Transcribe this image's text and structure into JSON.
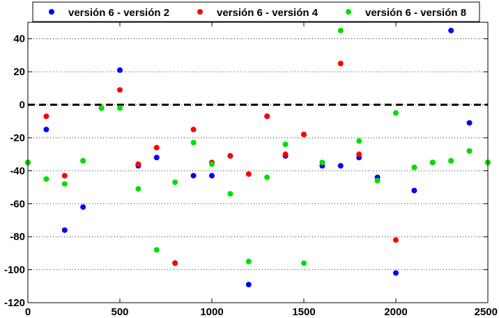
{
  "chart_data": {
    "type": "scatter",
    "title": "",
    "xlabel": "",
    "ylabel": "",
    "xlim": [
      0,
      2500
    ],
    "ylim": [
      -120,
      50
    ],
    "xticks": [
      0,
      500,
      1000,
      1500,
      2000,
      2500
    ],
    "yticks": [
      -120,
      -100,
      -80,
      -60,
      -40,
      -20,
      0,
      20,
      40
    ],
    "grid": "horizontal-dotted",
    "reference_line": {
      "y": 0,
      "style": "dashed",
      "color": "#000000"
    },
    "legend_position": "top",
    "series": [
      {
        "name": "versión 6 - versión 2",
        "color": "#0000ff",
        "points": [
          [
            0,
            -35
          ],
          [
            100,
            -15
          ],
          [
            200,
            -76
          ],
          [
            300,
            -62
          ],
          [
            400,
            -2
          ],
          [
            500,
            21
          ],
          [
            600,
            -37
          ],
          [
            700,
            -32
          ],
          [
            800,
            -96
          ],
          [
            900,
            -43
          ],
          [
            1000,
            -43
          ],
          [
            1100,
            -31
          ],
          [
            1200,
            -109
          ],
          [
            1300,
            -7
          ],
          [
            1400,
            -31
          ],
          [
            1500,
            -18
          ],
          [
            1600,
            -37
          ],
          [
            1700,
            -37
          ],
          [
            1800,
            -32
          ],
          [
            1900,
            -44
          ],
          [
            2000,
            -102
          ],
          [
            2100,
            -52
          ],
          [
            2200,
            -35
          ],
          [
            2300,
            45
          ],
          [
            2400,
            -11
          ],
          [
            2500,
            -35
          ]
        ]
      },
      {
        "name": "versión 6 - versión 4",
        "color": "#ff0000",
        "points": [
          [
            0,
            -35
          ],
          [
            100,
            -7
          ],
          [
            200,
            -43
          ],
          [
            300,
            -34
          ],
          [
            400,
            -2
          ],
          [
            500,
            9
          ],
          [
            600,
            -36
          ],
          [
            700,
            -26
          ],
          [
            800,
            -96
          ],
          [
            900,
            -15
          ],
          [
            1000,
            -35
          ],
          [
            1100,
            -31
          ],
          [
            1200,
            -42
          ],
          [
            1300,
            -7
          ],
          [
            1400,
            -30
          ],
          [
            1500,
            -18
          ],
          [
            1600,
            -35
          ],
          [
            1700,
            25
          ],
          [
            1800,
            -30
          ],
          [
            1900,
            -46
          ],
          [
            2000,
            -82
          ],
          [
            2100,
            -38
          ],
          [
            2200,
            -35
          ],
          [
            2300,
            -34
          ],
          [
            2400,
            -28
          ],
          [
            2500,
            -35
          ]
        ]
      },
      {
        "name": "versión 6 - versión 8",
        "color": "#00e000",
        "points": [
          [
            0,
            -35
          ],
          [
            100,
            -45
          ],
          [
            200,
            -48
          ],
          [
            300,
            -34
          ],
          [
            400,
            -2
          ],
          [
            500,
            -2
          ],
          [
            600,
            -51
          ],
          [
            700,
            -88
          ],
          [
            800,
            -47
          ],
          [
            900,
            -23
          ],
          [
            1000,
            -36
          ],
          [
            1100,
            -54
          ],
          [
            1200,
            -95
          ],
          [
            1300,
            -44
          ],
          [
            1400,
            -24
          ],
          [
            1500,
            -96
          ],
          [
            1600,
            -35
          ],
          [
            1700,
            45
          ],
          [
            1800,
            -22
          ],
          [
            1900,
            -46
          ],
          [
            2000,
            -5
          ],
          [
            2100,
            -38
          ],
          [
            2200,
            -35
          ],
          [
            2300,
            -34
          ],
          [
            2400,
            -28
          ],
          [
            2500,
            -35
          ]
        ]
      }
    ]
  }
}
